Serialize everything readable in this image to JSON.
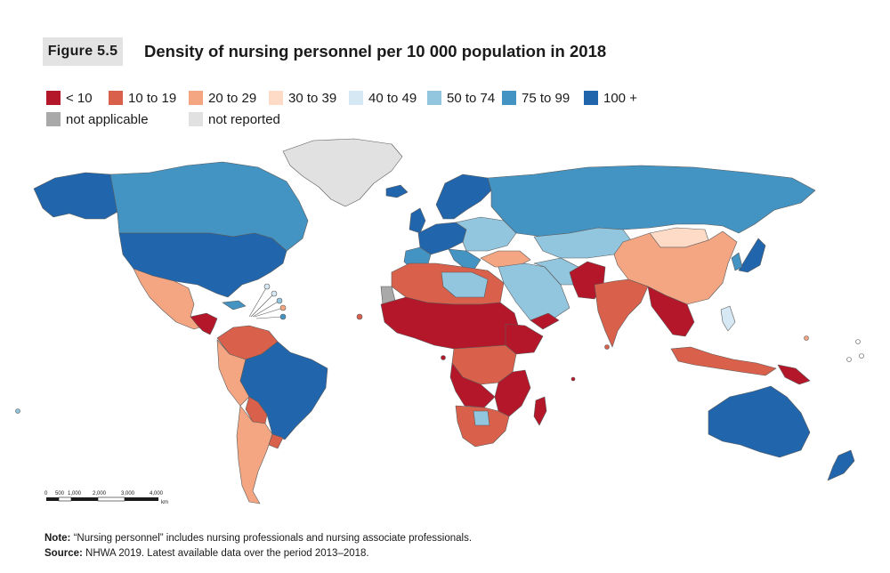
{
  "figure": {
    "label": "Figure 5.5",
    "title": "Density of nursing personnel per 10 000 population in 2018"
  },
  "legend": {
    "row1": [
      {
        "label": "< 10",
        "color": "#b5172a"
      },
      {
        "label": "10 to 19",
        "color": "#d9604a"
      },
      {
        "label": "20 to 29",
        "color": "#f4a582"
      },
      {
        "label": "30 to 39",
        "color": "#fddbc7"
      },
      {
        "label": "40 to 49",
        "color": "#d5e8f4"
      },
      {
        "label": "50 to 74",
        "color": "#92c5de"
      },
      {
        "label": "75 to 99",
        "color": "#4393c3"
      },
      {
        "label": "100 +",
        "color": "#2166ac"
      }
    ],
    "row2": [
      {
        "label": "not applicable",
        "color": "#a9a9a9"
      },
      {
        "label": "not reported",
        "color": "#e1e1e1"
      }
    ]
  },
  "scale_bar": {
    "ticks": [
      "0",
      "500",
      "1,000",
      "2,000",
      "3,000",
      "4,000"
    ],
    "unit": "km"
  },
  "note": {
    "note_label": "Note:",
    "note_text": " “Nursing personnel” includes nursing professionals and nursing associate professionals.",
    "source_label": "Source:",
    "source_text": " NHWA 2019. Latest available data over the period 2013–2018."
  }
}
